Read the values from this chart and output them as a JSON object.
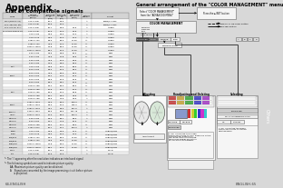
{
  "bg_color": "#d8d8d8",
  "left_bg": "#ffffff",
  "right_bg": "#ffffff",
  "title_left": "Appendix",
  "subtitle_left": "List of compatible signals",
  "title_right": "General arrangement of the \"COLOR MANAGEMENT\" menu",
  "footer_left": "64-ENGLISH",
  "footer_right": "ENGLISH-65",
  "sidebar_text": "Others",
  "sidebar_color": "#888888"
}
